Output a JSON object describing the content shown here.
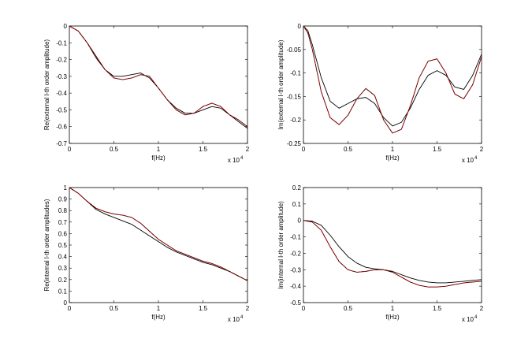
{
  "chart_data": [
    {
      "type": "line",
      "xlabel": "f(Hz)",
      "ylabel": "Re(external l-th order amplitude)",
      "x_multiplier": {
        "base": "x 10",
        "exp": "4"
      },
      "xlim": [
        0,
        2
      ],
      "ylim": [
        -0.7,
        0
      ],
      "xticks": [
        0,
        0.5,
        1,
        1.5,
        2
      ],
      "xtick_labels": [
        "0",
        "0.5",
        "1",
        "1.5",
        "2"
      ],
      "yticks": [
        -0.7,
        -0.6,
        -0.5,
        -0.4,
        -0.3,
        -0.2,
        -0.1,
        0
      ],
      "ytick_labels": [
        "-0.7",
        "-0.6",
        "-0.5",
        "-0.4",
        "-0.3",
        "-0.2",
        "-0.1",
        "0"
      ],
      "grid": false,
      "series": [
        {
          "color": "#000000",
          "style": "solid",
          "x": [
            0,
            0.1,
            0.2,
            0.3,
            0.4,
            0.5,
            0.6,
            0.7,
            0.8,
            0.9,
            1.0,
            1.1,
            1.2,
            1.3,
            1.4,
            1.5,
            1.6,
            1.7,
            1.8,
            1.9,
            2.0
          ],
          "y": [
            0,
            -0.03,
            -0.1,
            -0.19,
            -0.26,
            -0.3,
            -0.3,
            -0.29,
            -0.28,
            -0.31,
            -0.37,
            -0.44,
            -0.49,
            -0.52,
            -0.52,
            -0.5,
            -0.48,
            -0.49,
            -0.53,
            -0.57,
            -0.61
          ]
        },
        {
          "color": "#000000",
          "style": "solid",
          "x": [
            0,
            0.1,
            0.2,
            0.3,
            0.4,
            0.5,
            0.6,
            0.7,
            0.8,
            0.9,
            1.0,
            1.1,
            1.2,
            1.3,
            1.4,
            1.5,
            1.6,
            1.7,
            1.8,
            1.9,
            2.0
          ],
          "y": [
            0,
            -0.03,
            -0.1,
            -0.18,
            -0.26,
            -0.31,
            -0.32,
            -0.31,
            -0.29,
            -0.3,
            -0.37,
            -0.44,
            -0.5,
            -0.53,
            -0.52,
            -0.48,
            -0.46,
            -0.48,
            -0.53,
            -0.56,
            -0.6
          ]
        },
        {
          "color": "#cc0000",
          "style": "dashed",
          "x": [
            0,
            0.1,
            0.2,
            0.3,
            0.4,
            0.5,
            0.6,
            0.7,
            0.8,
            0.9,
            1.0,
            1.1,
            1.2,
            1.3,
            1.4,
            1.5,
            1.6,
            1.7,
            1.8,
            1.9,
            2.0
          ],
          "y": [
            0,
            -0.03,
            -0.1,
            -0.18,
            -0.26,
            -0.31,
            -0.32,
            -0.31,
            -0.29,
            -0.3,
            -0.37,
            -0.44,
            -0.5,
            -0.53,
            -0.52,
            -0.48,
            -0.46,
            -0.48,
            -0.53,
            -0.56,
            -0.6
          ]
        }
      ]
    },
    {
      "type": "line",
      "xlabel": "f(Hz)",
      "ylabel": "Im(external l-th order amplitude)",
      "x_multiplier": {
        "base": "x 10",
        "exp": "4"
      },
      "xlim": [
        0,
        2
      ],
      "ylim": [
        -0.25,
        0
      ],
      "xticks": [
        0,
        0.5,
        1,
        1.5,
        2
      ],
      "xtick_labels": [
        "0",
        "0.5",
        "1",
        "1.5",
        "2"
      ],
      "yticks": [
        -0.25,
        -0.2,
        -0.15,
        -0.1,
        -0.05,
        0
      ],
      "ytick_labels": [
        "-0.25",
        "-0.2",
        "-0.15",
        "-0.1",
        "-0.05",
        "0"
      ],
      "grid": false,
      "series": [
        {
          "color": "#000000",
          "style": "solid",
          "x": [
            0,
            0.05,
            0.1,
            0.2,
            0.3,
            0.4,
            0.5,
            0.6,
            0.7,
            0.8,
            0.9,
            1.0,
            1.1,
            1.2,
            1.3,
            1.4,
            1.5,
            1.6,
            1.7,
            1.8,
            1.9,
            2.0
          ],
          "y": [
            0,
            -0.01,
            -0.04,
            -0.11,
            -0.16,
            -0.175,
            -0.165,
            -0.155,
            -0.152,
            -0.165,
            -0.195,
            -0.213,
            -0.205,
            -0.175,
            -0.135,
            -0.105,
            -0.095,
            -0.105,
            -0.13,
            -0.135,
            -0.105,
            -0.06
          ]
        },
        {
          "color": "#000000",
          "style": "solid",
          "x": [
            0,
            0.05,
            0.1,
            0.2,
            0.3,
            0.4,
            0.5,
            0.6,
            0.7,
            0.8,
            0.9,
            1.0,
            1.1,
            1.2,
            1.3,
            1.4,
            1.5,
            1.6,
            1.7,
            1.8,
            1.9,
            2.0
          ],
          "y": [
            0,
            -0.015,
            -0.05,
            -0.14,
            -0.195,
            -0.21,
            -0.19,
            -0.155,
            -0.133,
            -0.148,
            -0.2,
            -0.228,
            -0.22,
            -0.17,
            -0.11,
            -0.075,
            -0.07,
            -0.1,
            -0.145,
            -0.155,
            -0.125,
            -0.065
          ]
        },
        {
          "color": "#cc0000",
          "style": "dashed",
          "x": [
            0,
            0.05,
            0.1,
            0.2,
            0.3,
            0.4,
            0.5,
            0.6,
            0.7,
            0.8,
            0.9,
            1.0,
            1.1,
            1.2,
            1.3,
            1.4,
            1.5,
            1.6,
            1.7,
            1.8,
            1.9,
            2.0
          ],
          "y": [
            0,
            -0.015,
            -0.05,
            -0.14,
            -0.195,
            -0.21,
            -0.19,
            -0.155,
            -0.133,
            -0.148,
            -0.2,
            -0.228,
            -0.22,
            -0.17,
            -0.11,
            -0.075,
            -0.07,
            -0.1,
            -0.145,
            -0.155,
            -0.125,
            -0.065
          ]
        }
      ]
    },
    {
      "type": "line",
      "xlabel": "f(Hz)",
      "ylabel": "Re(internal l-th order amplitudes)",
      "x_multiplier": {
        "base": "x 10",
        "exp": "4"
      },
      "xlim": [
        0,
        2
      ],
      "ylim": [
        0,
        1
      ],
      "xticks": [
        0,
        0.5,
        1,
        1.5,
        2
      ],
      "xtick_labels": [
        "0",
        "0.5",
        "1",
        "1.5",
        "2"
      ],
      "yticks": [
        0,
        0.1,
        0.2,
        0.3,
        0.4,
        0.5,
        0.6,
        0.7,
        0.8,
        0.9,
        1
      ],
      "ytick_labels": [
        "0",
        "0.1",
        "0.2",
        "0.3",
        "0.4",
        "0.5",
        "0.6",
        "0.7",
        "0.8",
        "0.9",
        "1"
      ],
      "grid": false,
      "series": [
        {
          "color": "#000000",
          "style": "solid",
          "x": [
            0,
            0.1,
            0.2,
            0.3,
            0.4,
            0.5,
            0.6,
            0.7,
            0.8,
            0.9,
            1.0,
            1.1,
            1.2,
            1.3,
            1.4,
            1.5,
            1.6,
            1.7,
            1.8,
            1.9,
            2.0
          ],
          "y": [
            1.0,
            0.95,
            0.88,
            0.81,
            0.77,
            0.74,
            0.71,
            0.68,
            0.63,
            0.58,
            0.53,
            0.48,
            0.44,
            0.41,
            0.38,
            0.35,
            0.33,
            0.3,
            0.27,
            0.23,
            0.19
          ]
        },
        {
          "color": "#000000",
          "style": "solid",
          "x": [
            0,
            0.1,
            0.2,
            0.3,
            0.4,
            0.5,
            0.6,
            0.7,
            0.8,
            0.9,
            1.0,
            1.1,
            1.2,
            1.3,
            1.4,
            1.5,
            1.6,
            1.7,
            1.8,
            1.9,
            2.0
          ],
          "y": [
            1.0,
            0.95,
            0.88,
            0.82,
            0.79,
            0.77,
            0.76,
            0.74,
            0.69,
            0.62,
            0.55,
            0.5,
            0.45,
            0.42,
            0.39,
            0.36,
            0.34,
            0.31,
            0.27,
            0.23,
            0.19
          ]
        },
        {
          "color": "#cc0000",
          "style": "dashed",
          "x": [
            0,
            0.1,
            0.2,
            0.3,
            0.4,
            0.5,
            0.6,
            0.7,
            0.8,
            0.9,
            1.0,
            1.1,
            1.2,
            1.3,
            1.4,
            1.5,
            1.6,
            1.7,
            1.8,
            1.9,
            2.0
          ],
          "y": [
            1.0,
            0.95,
            0.88,
            0.82,
            0.79,
            0.77,
            0.76,
            0.74,
            0.69,
            0.62,
            0.55,
            0.5,
            0.45,
            0.42,
            0.39,
            0.36,
            0.34,
            0.31,
            0.27,
            0.23,
            0.19
          ]
        }
      ]
    },
    {
      "type": "line",
      "xlabel": "f(Hz)",
      "ylabel": "Im(internal l-th order amplitude)",
      "x_multiplier": {
        "base": "x 10",
        "exp": "4"
      },
      "xlim": [
        0,
        2
      ],
      "ylim": [
        -0.5,
        0.2
      ],
      "xticks": [
        0,
        0.5,
        1,
        1.5,
        2
      ],
      "xtick_labels": [
        "0",
        "0.5",
        "1",
        "1.5",
        "2"
      ],
      "yticks": [
        -0.5,
        -0.4,
        -0.3,
        -0.2,
        -0.1,
        0,
        0.1,
        0.2
      ],
      "ytick_labels": [
        "-0.5",
        "-0.4",
        "-0.3",
        "-0.2",
        "-0.1",
        "0",
        "0.1",
        "0.2"
      ],
      "grid": false,
      "series": [
        {
          "color": "#000000",
          "style": "solid",
          "x": [
            0,
            0.1,
            0.2,
            0.3,
            0.4,
            0.5,
            0.6,
            0.7,
            0.8,
            0.9,
            1.0,
            1.1,
            1.2,
            1.3,
            1.4,
            1.5,
            1.6,
            1.7,
            1.8,
            1.9,
            2.0
          ],
          "y": [
            0,
            -0.005,
            -0.03,
            -0.09,
            -0.16,
            -0.22,
            -0.26,
            -0.285,
            -0.295,
            -0.3,
            -0.31,
            -0.33,
            -0.35,
            -0.365,
            -0.375,
            -0.38,
            -0.38,
            -0.375,
            -0.37,
            -0.365,
            -0.36
          ]
        },
        {
          "color": "#000000",
          "style": "solid",
          "x": [
            0,
            0.1,
            0.2,
            0.3,
            0.4,
            0.5,
            0.6,
            0.7,
            0.8,
            0.9,
            1.0,
            1.1,
            1.2,
            1.3,
            1.4,
            1.5,
            1.6,
            1.7,
            1.8,
            1.9,
            2.0
          ],
          "y": [
            0,
            -0.01,
            -0.06,
            -0.16,
            -0.25,
            -0.3,
            -0.315,
            -0.31,
            -0.3,
            -0.3,
            -0.315,
            -0.345,
            -0.375,
            -0.395,
            -0.405,
            -0.405,
            -0.4,
            -0.39,
            -0.38,
            -0.375,
            -0.37
          ]
        },
        {
          "color": "#cc0000",
          "style": "dashed",
          "x": [
            0,
            0.1,
            0.2,
            0.3,
            0.4,
            0.5,
            0.6,
            0.7,
            0.8,
            0.9,
            1.0,
            1.1,
            1.2,
            1.3,
            1.4,
            1.5,
            1.6,
            1.7,
            1.8,
            1.9,
            2.0
          ],
          "y": [
            0,
            -0.01,
            -0.06,
            -0.16,
            -0.25,
            -0.3,
            -0.315,
            -0.31,
            -0.3,
            -0.3,
            -0.315,
            -0.345,
            -0.375,
            -0.395,
            -0.405,
            -0.405,
            -0.4,
            -0.39,
            -0.38,
            -0.375,
            -0.37
          ]
        }
      ]
    }
  ]
}
